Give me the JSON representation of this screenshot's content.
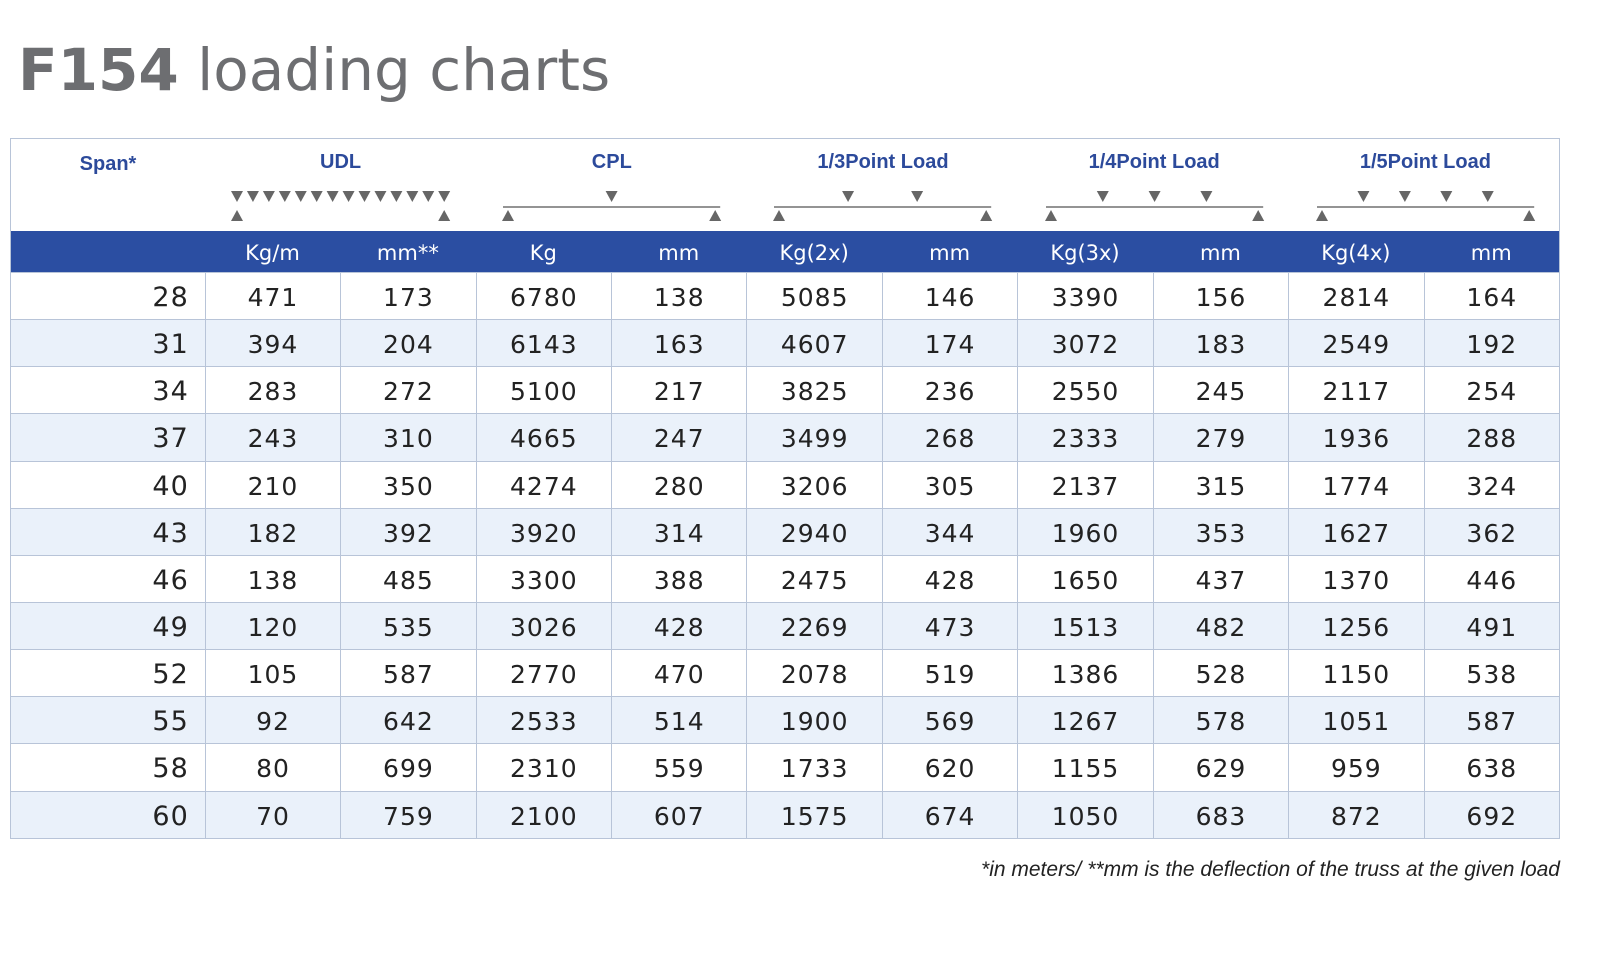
{
  "title": {
    "code": "F154",
    "text": "loading charts"
  },
  "table": {
    "groups": [
      "Span*",
      "UDL",
      "CPL",
      "1/3Point Load",
      "1/4Point Load",
      "1/5Point Load"
    ],
    "units": [
      "Kg/m",
      "mm**",
      "Kg",
      "mm",
      "Kg(2x)",
      "mm",
      "Kg(3x)",
      "mm",
      "Kg(4x)",
      "mm"
    ],
    "rows": [
      [
        28,
        471,
        173,
        6780,
        138,
        5085,
        146,
        3390,
        156,
        2814,
        164
      ],
      [
        31,
        394,
        204,
        6143,
        163,
        4607,
        174,
        3072,
        183,
        2549,
        192
      ],
      [
        34,
        283,
        272,
        5100,
        217,
        3825,
        236,
        2550,
        245,
        2117,
        254
      ],
      [
        37,
        243,
        310,
        4665,
        247,
        3499,
        268,
        2333,
        279,
        1936,
        288
      ],
      [
        40,
        210,
        350,
        4274,
        280,
        3206,
        305,
        2137,
        315,
        1774,
        324
      ],
      [
        43,
        182,
        392,
        3920,
        314,
        2940,
        344,
        1960,
        353,
        1627,
        362
      ],
      [
        46,
        138,
        485,
        3300,
        388,
        2475,
        428,
        1650,
        437,
        1370,
        446
      ],
      [
        49,
        120,
        535,
        3026,
        428,
        2269,
        473,
        1513,
        482,
        1256,
        491
      ],
      [
        52,
        105,
        587,
        2770,
        470,
        2078,
        519,
        1386,
        528,
        1150,
        538
      ],
      [
        55,
        92,
        642,
        2533,
        514,
        1900,
        569,
        1267,
        578,
        1051,
        587
      ],
      [
        58,
        80,
        699,
        2310,
        559,
        1733,
        620,
        1155,
        629,
        959,
        638
      ],
      [
        60,
        70,
        759,
        2100,
        607,
        1575,
        674,
        1050,
        683,
        872,
        692
      ]
    ]
  },
  "footnote": "*in meters/ **mm is the deflection of the truss at the given load"
}
